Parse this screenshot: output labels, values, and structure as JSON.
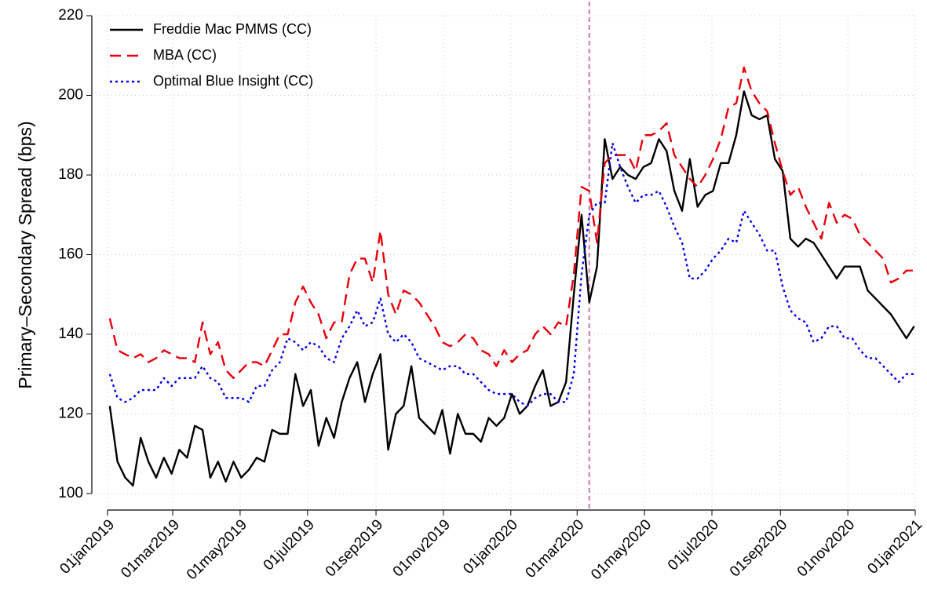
{
  "chart_data": {
    "type": "line",
    "y_label": "Primary–Secondary Spread (bps)",
    "xlim": [
      "2019-01-01",
      "2021-01-01"
    ],
    "xticks": [
      {
        "value": "2019-01-01",
        "label": "01jan2019"
      },
      {
        "value": "2019-03-01",
        "label": "01mar2019"
      },
      {
        "value": "2019-05-01",
        "label": "01may2019"
      },
      {
        "value": "2019-07-01",
        "label": "01jul2019"
      },
      {
        "value": "2019-09-01",
        "label": "01sep2019"
      },
      {
        "value": "2019-11-01",
        "label": "01nov2019"
      },
      {
        "value": "2020-01-01",
        "label": "01jan2020"
      },
      {
        "value": "2020-03-01",
        "label": "01mar2020"
      },
      {
        "value": "2020-05-01",
        "label": "01may2020"
      },
      {
        "value": "2020-07-01",
        "label": "01jul2020"
      },
      {
        "value": "2020-09-01",
        "label": "01sep2020"
      },
      {
        "value": "2020-11-01",
        "label": "01nov2020"
      },
      {
        "value": "2021-01-01",
        "label": "01jan2021"
      }
    ],
    "ylim": [
      100,
      220
    ],
    "yticks": [
      100,
      120,
      140,
      160,
      180,
      200,
      220
    ],
    "grid": true,
    "legend": "top-left",
    "vline": {
      "x": "2020-03-12",
      "color": "#cc79a7"
    },
    "x": [
      "2019-01-03",
      "2019-01-10",
      "2019-01-17",
      "2019-01-24",
      "2019-01-31",
      "2019-02-07",
      "2019-02-14",
      "2019-02-21",
      "2019-02-28",
      "2019-03-07",
      "2019-03-14",
      "2019-03-21",
      "2019-03-28",
      "2019-04-04",
      "2019-04-11",
      "2019-04-18",
      "2019-04-25",
      "2019-05-02",
      "2019-05-09",
      "2019-05-16",
      "2019-05-23",
      "2019-05-30",
      "2019-06-06",
      "2019-06-13",
      "2019-06-20",
      "2019-06-27",
      "2019-07-04",
      "2019-07-11",
      "2019-07-18",
      "2019-07-25",
      "2019-08-01",
      "2019-08-08",
      "2019-08-15",
      "2019-08-22",
      "2019-08-29",
      "2019-09-05",
      "2019-09-12",
      "2019-09-19",
      "2019-09-26",
      "2019-10-03",
      "2019-10-10",
      "2019-10-17",
      "2019-10-24",
      "2019-10-31",
      "2019-11-07",
      "2019-11-14",
      "2019-11-21",
      "2019-11-28",
      "2019-12-05",
      "2019-12-12",
      "2019-12-19",
      "2019-12-26",
      "2020-01-02",
      "2020-01-09",
      "2020-01-16",
      "2020-01-23",
      "2020-01-30",
      "2020-02-06",
      "2020-02-13",
      "2020-02-20",
      "2020-02-27",
      "2020-03-05",
      "2020-03-12",
      "2020-03-19",
      "2020-03-26",
      "2020-04-02",
      "2020-04-09",
      "2020-04-16",
      "2020-04-23",
      "2020-04-30",
      "2020-05-07",
      "2020-05-14",
      "2020-05-21",
      "2020-05-28",
      "2020-06-04",
      "2020-06-11",
      "2020-06-18",
      "2020-06-25",
      "2020-07-02",
      "2020-07-09",
      "2020-07-16",
      "2020-07-23",
      "2020-07-30",
      "2020-08-06",
      "2020-08-13",
      "2020-08-20",
      "2020-08-27",
      "2020-09-03",
      "2020-09-10",
      "2020-09-17",
      "2020-09-24",
      "2020-10-01",
      "2020-10-08",
      "2020-10-15",
      "2020-10-22",
      "2020-10-29",
      "2020-11-05",
      "2020-11-12",
      "2020-11-19",
      "2020-11-26",
      "2020-12-03",
      "2020-12-10",
      "2020-12-17",
      "2020-12-24",
      "2020-12-31"
    ],
    "series": [
      {
        "name": "Freddie Mac PMMS (CC)",
        "color": "#000000",
        "dash": "solid",
        "values": [
          122,
          108,
          104,
          102,
          114,
          108,
          104,
          109,
          105,
          111,
          109,
          117,
          116,
          104,
          108,
          103,
          108,
          104,
          106,
          109,
          108,
          116,
          115,
          115,
          130,
          122,
          126,
          112,
          119,
          114,
          123,
          129,
          133,
          123,
          130,
          135,
          111,
          120,
          122,
          132,
          119,
          117,
          115,
          121,
          110,
          120,
          115,
          115,
          113,
          119,
          117,
          119,
          125,
          120,
          122,
          127,
          131,
          122,
          123,
          128,
          150,
          170,
          148,
          157,
          189,
          179,
          182,
          180,
          179,
          182,
          183,
          189,
          186,
          176,
          171,
          184,
          172,
          175,
          176,
          183,
          183,
          190,
          201,
          195,
          194,
          195,
          184,
          181,
          164,
          162,
          164,
          163,
          160,
          157,
          154,
          157,
          157,
          157,
          151,
          149,
          147,
          145,
          142,
          139,
          142
        ]
      },
      {
        "name": "MBA (CC)",
        "color": "#e8000b",
        "dash": "dashed",
        "values": [
          144,
          136,
          135,
          134,
          135,
          133,
          134,
          136,
          135,
          134,
          134,
          133,
          143,
          135,
          138,
          131,
          129,
          131,
          133,
          133,
          132,
          136,
          140,
          140,
          148,
          152,
          148,
          145,
          139,
          143,
          143,
          155,
          159,
          159,
          153,
          166,
          150,
          145,
          151,
          150,
          148,
          145,
          142,
          138,
          137,
          138,
          140,
          139,
          136,
          135,
          132,
          136,
          133,
          135,
          136,
          140,
          142,
          140,
          143,
          142,
          155,
          177,
          176,
          163,
          183,
          185,
          185,
          185,
          181,
          190,
          190,
          191,
          193,
          185,
          182,
          179,
          177,
          180,
          184,
          189,
          197,
          198,
          207,
          201,
          198,
          196,
          188,
          181,
          175,
          177,
          172,
          168,
          164,
          173,
          168,
          170,
          169,
          165,
          163,
          161,
          159,
          153,
          154,
          156,
          156
        ]
      },
      {
        "name": "Optimal Blue Insight (CC)",
        "color": "#0000e6",
        "dash": "dotted",
        "values": [
          130,
          124,
          123,
          124,
          126,
          126,
          126,
          129,
          127,
          129,
          129,
          129,
          132,
          129,
          128,
          124,
          124,
          124,
          123,
          127,
          127,
          131,
          133,
          139,
          138,
          136,
          138,
          137,
          134,
          133,
          139,
          142,
          146,
          142,
          143,
          149,
          140,
          138,
          140,
          138,
          134,
          133,
          132,
          131,
          132,
          132,
          130,
          130,
          128,
          126,
          125,
          125,
          125,
          123,
          122,
          124,
          125,
          125,
          123,
          123,
          130,
          155,
          170,
          173,
          173,
          188,
          182,
          177,
          173,
          175,
          175,
          176,
          172,
          167,
          163,
          154,
          154,
          156,
          159,
          161,
          164,
          163,
          171,
          168,
          165,
          161,
          161,
          152,
          146,
          144,
          143,
          138,
          139,
          142,
          142,
          139,
          139,
          136,
          134,
          134,
          132,
          130,
          128,
          130,
          130
        ]
      }
    ]
  }
}
